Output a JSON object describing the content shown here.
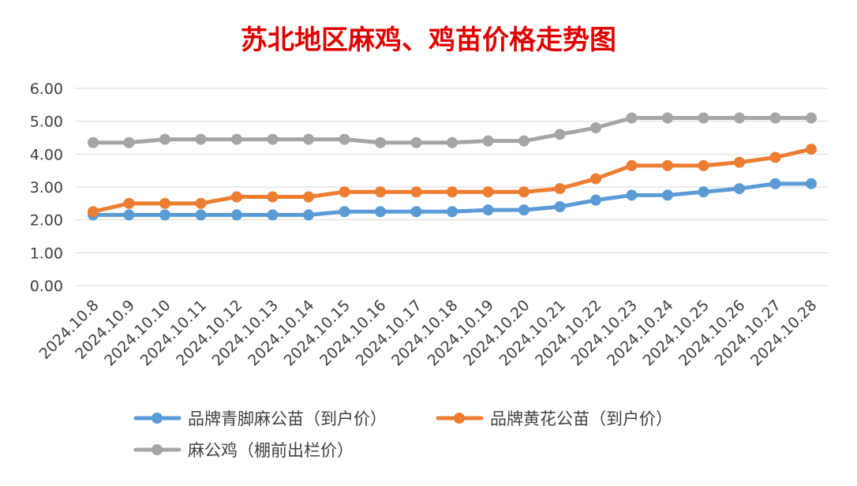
{
  "chart_data": {
    "type": "line",
    "title": "苏北地区麻鸡、鸡苗价格走势图",
    "xlabel": "",
    "ylabel": "",
    "ylim": [
      0,
      6
    ],
    "y_ticks": [
      "0.00",
      "1.00",
      "2.00",
      "3.00",
      "4.00",
      "5.00",
      "6.00"
    ],
    "grid": "horizontal",
    "legend_position": "bottom",
    "categories": [
      "2024.10.8",
      "2024.10.9",
      "2024.10.10",
      "2024.10.11",
      "2024.10.12",
      "2024.10.13",
      "2024.10.14",
      "2024.10.15",
      "2024.10.16",
      "2024.10.17",
      "2024.10.18",
      "2024.10.19",
      "2024.10.20",
      "2024.10.21",
      "2024.10.22",
      "2024.10.23",
      "2024.10.24",
      "2024.10.25",
      "2024.10.26",
      "2024.10.27",
      "2024.10.28"
    ],
    "series": [
      {
        "name": "品牌青脚麻公苗（到户价）",
        "color": "#5b9bd5",
        "values": [
          2.15,
          2.15,
          2.15,
          2.15,
          2.15,
          2.15,
          2.15,
          2.25,
          2.25,
          2.25,
          2.25,
          2.3,
          2.3,
          2.4,
          2.6,
          2.75,
          2.75,
          2.85,
          2.95,
          3.1,
          3.1
        ]
      },
      {
        "name": "品牌黄花公苗（到户价）",
        "color": "#ed7d31",
        "values": [
          2.25,
          2.5,
          2.5,
          2.5,
          2.7,
          2.7,
          2.7,
          2.85,
          2.85,
          2.85,
          2.85,
          2.85,
          2.85,
          2.95,
          3.25,
          3.65,
          3.65,
          3.65,
          3.75,
          3.9,
          4.15
        ]
      },
      {
        "name": "麻公鸡（棚前出栏价）",
        "color": "#a5a5a5",
        "values": [
          4.35,
          4.35,
          4.45,
          4.45,
          4.45,
          4.45,
          4.45,
          4.45,
          4.35,
          4.35,
          4.35,
          4.4,
          4.4,
          4.6,
          4.8,
          5.1,
          5.1,
          5.1,
          5.1,
          5.1,
          5.1
        ]
      }
    ]
  }
}
